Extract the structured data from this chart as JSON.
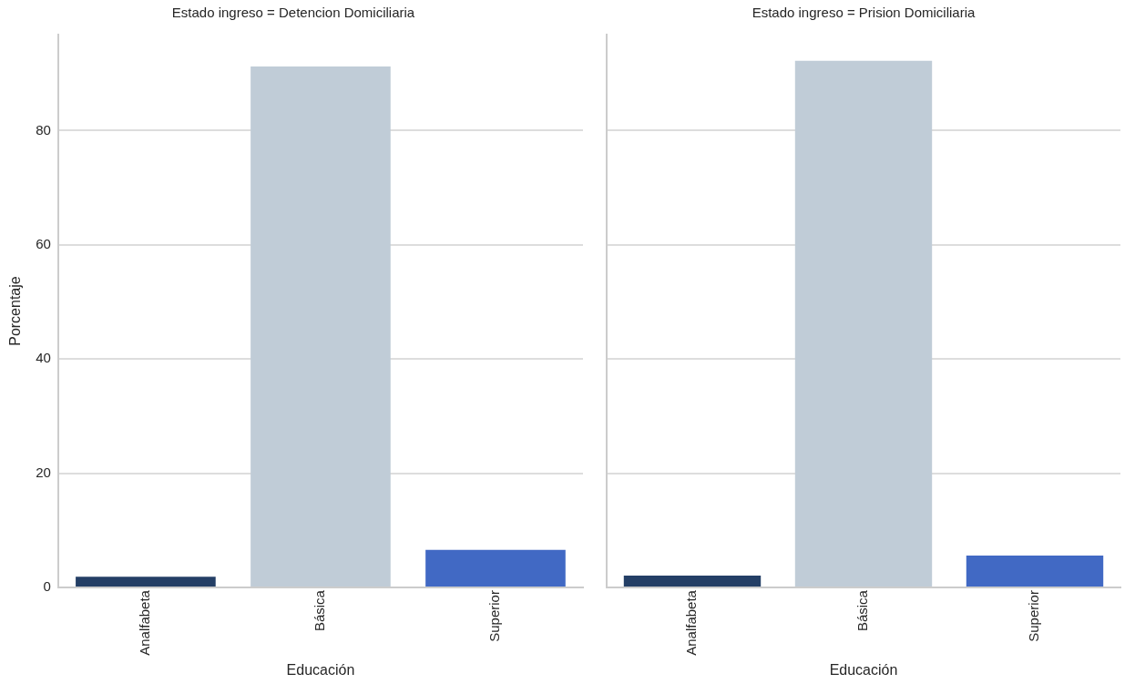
{
  "chart_data": [
    {
      "type": "bar",
      "title": "Estado ingreso = Detencion Domiciliaria",
      "xlabel": "Educación",
      "ylabel": "Porcentaje",
      "categories": [
        "Analfabeta",
        "Básica",
        "Superior"
      ],
      "values": [
        1.9,
        91.2,
        6.6
      ],
      "colors": [
        "#243f66",
        "#c0ccd7",
        "#4169c4"
      ],
      "ylim": [
        0,
        96.8
      ],
      "yticks": [
        0,
        20,
        40,
        60,
        80
      ],
      "grid": "y",
      "legend": false
    },
    {
      "type": "bar",
      "title": "Estado ingreso = Prision Domiciliaria",
      "xlabel": "Educación",
      "categories": [
        "Analfabeta",
        "Básica",
        "Superior"
      ],
      "values": [
        2.1,
        92.2,
        5.6
      ],
      "colors": [
        "#243f66",
        "#c0ccd7",
        "#4169c4"
      ],
      "ylim": [
        0,
        96.8
      ],
      "yticks": [
        0,
        20,
        40,
        60,
        80
      ],
      "grid": "y",
      "legend": false,
      "tick_labels": "x"
    }
  ]
}
